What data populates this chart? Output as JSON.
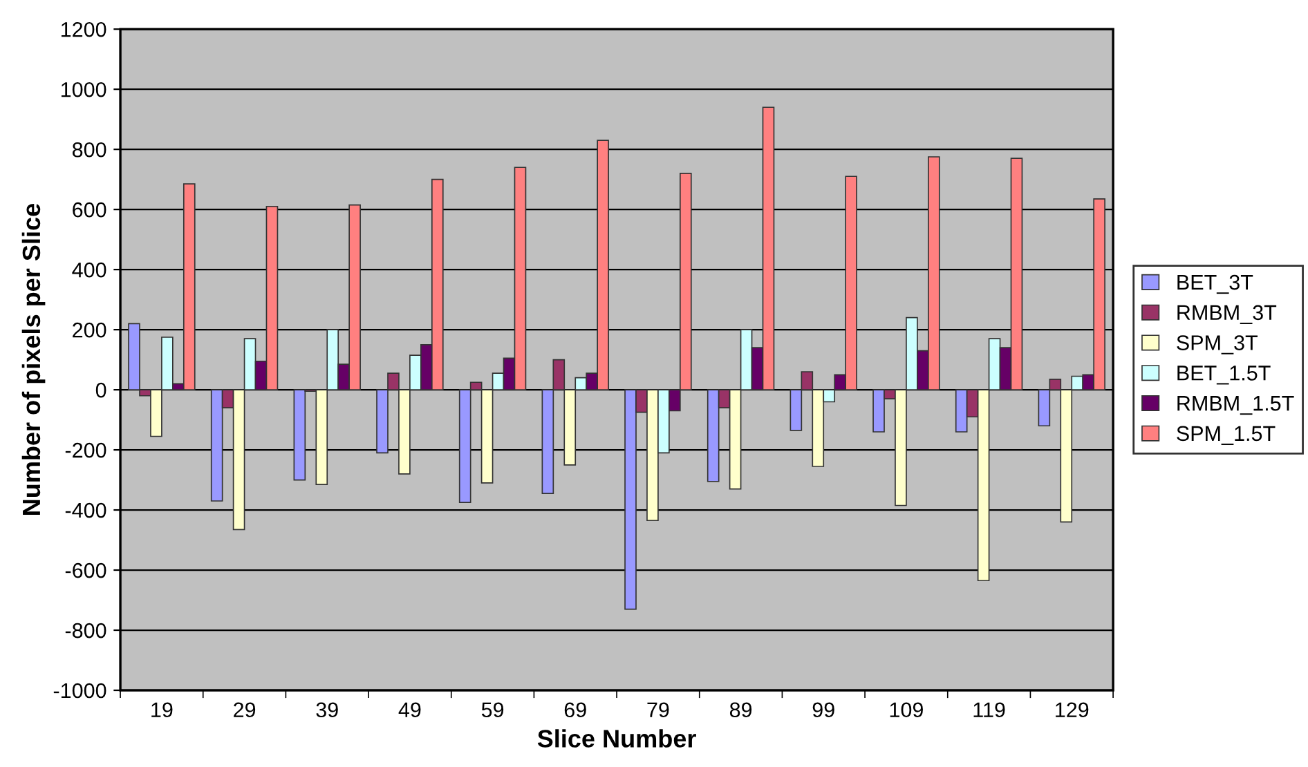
{
  "chart_data": {
    "type": "bar",
    "xlabel": "Slice Number",
    "ylabel": "Number of pixels per Slice",
    "categories": [
      "19",
      "29",
      "39",
      "49",
      "59",
      "69",
      "79",
      "89",
      "99",
      "109",
      "119",
      "129"
    ],
    "series": [
      {
        "name": "BET_3T",
        "color": "#9999ff",
        "values": [
          220,
          -370,
          -300,
          -210,
          -375,
          -345,
          -730,
          -305,
          -135,
          -140,
          -140,
          -120
        ]
      },
      {
        "name": "RMBM_3T",
        "color": "#993366",
        "values": [
          -20,
          -60,
          -5,
          55,
          25,
          100,
          -75,
          -60,
          60,
          -30,
          -90,
          35
        ]
      },
      {
        "name": "SPM_3T",
        "color": "#ffffcc",
        "values": [
          -155,
          -465,
          -315,
          -280,
          -310,
          -250,
          -435,
          -330,
          -255,
          -385,
          -635,
          -440
        ]
      },
      {
        "name": "BET_1.5T",
        "color": "#ccffff",
        "values": [
          175,
          170,
          200,
          115,
          55,
          40,
          -210,
          200,
          -40,
          240,
          170,
          45
        ]
      },
      {
        "name": "RMBM_1.5T",
        "color": "#660066",
        "values": [
          20,
          95,
          85,
          150,
          105,
          55,
          -70,
          140,
          50,
          130,
          140,
          50
        ]
      },
      {
        "name": "SPM_1.5T",
        "color": "#ff8080",
        "values": [
          685,
          610,
          615,
          700,
          740,
          830,
          720,
          940,
          710,
          775,
          770,
          635
        ]
      }
    ],
    "ylim": [
      -1000,
      1200
    ],
    "yticks": [
      -1000,
      -800,
      -600,
      -400,
      -200,
      0,
      200,
      400,
      600,
      800,
      1000,
      1200
    ],
    "grid": "y",
    "legend": "right"
  }
}
